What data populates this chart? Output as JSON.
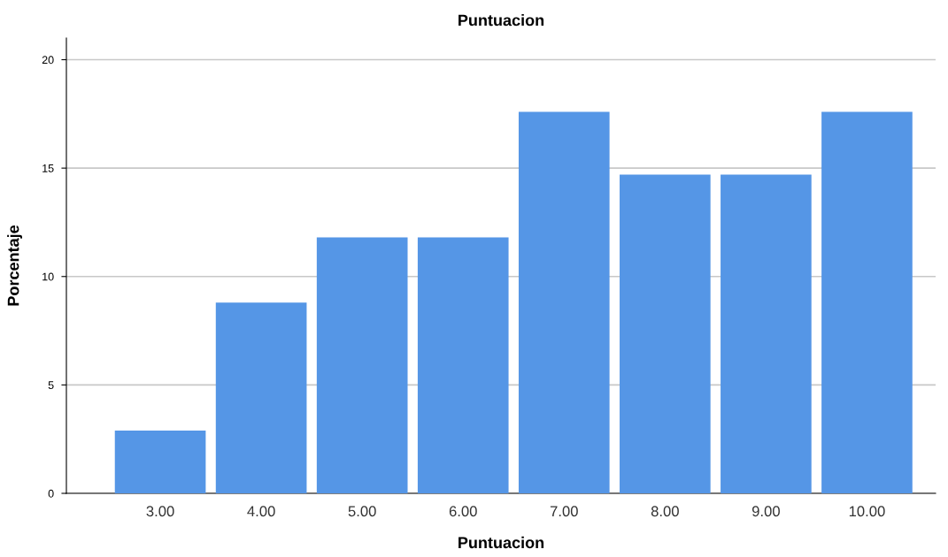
{
  "chart_data": {
    "type": "bar",
    "title": "Puntuacion",
    "xlabel": "Puntuacion",
    "ylabel": "Porcentaje",
    "categories": [
      "3.00",
      "4.00",
      "5.00",
      "6.00",
      "7.00",
      "8.00",
      "9.00",
      "10.00"
    ],
    "values": [
      2.9,
      8.8,
      11.8,
      11.8,
      17.6,
      14.7,
      14.7,
      17.6
    ],
    "color": "#5596e6",
    "ylim": [
      0,
      21
    ],
    "yticks": [
      0,
      5,
      10,
      15,
      20
    ],
    "grid": "y",
    "legend": false
  }
}
